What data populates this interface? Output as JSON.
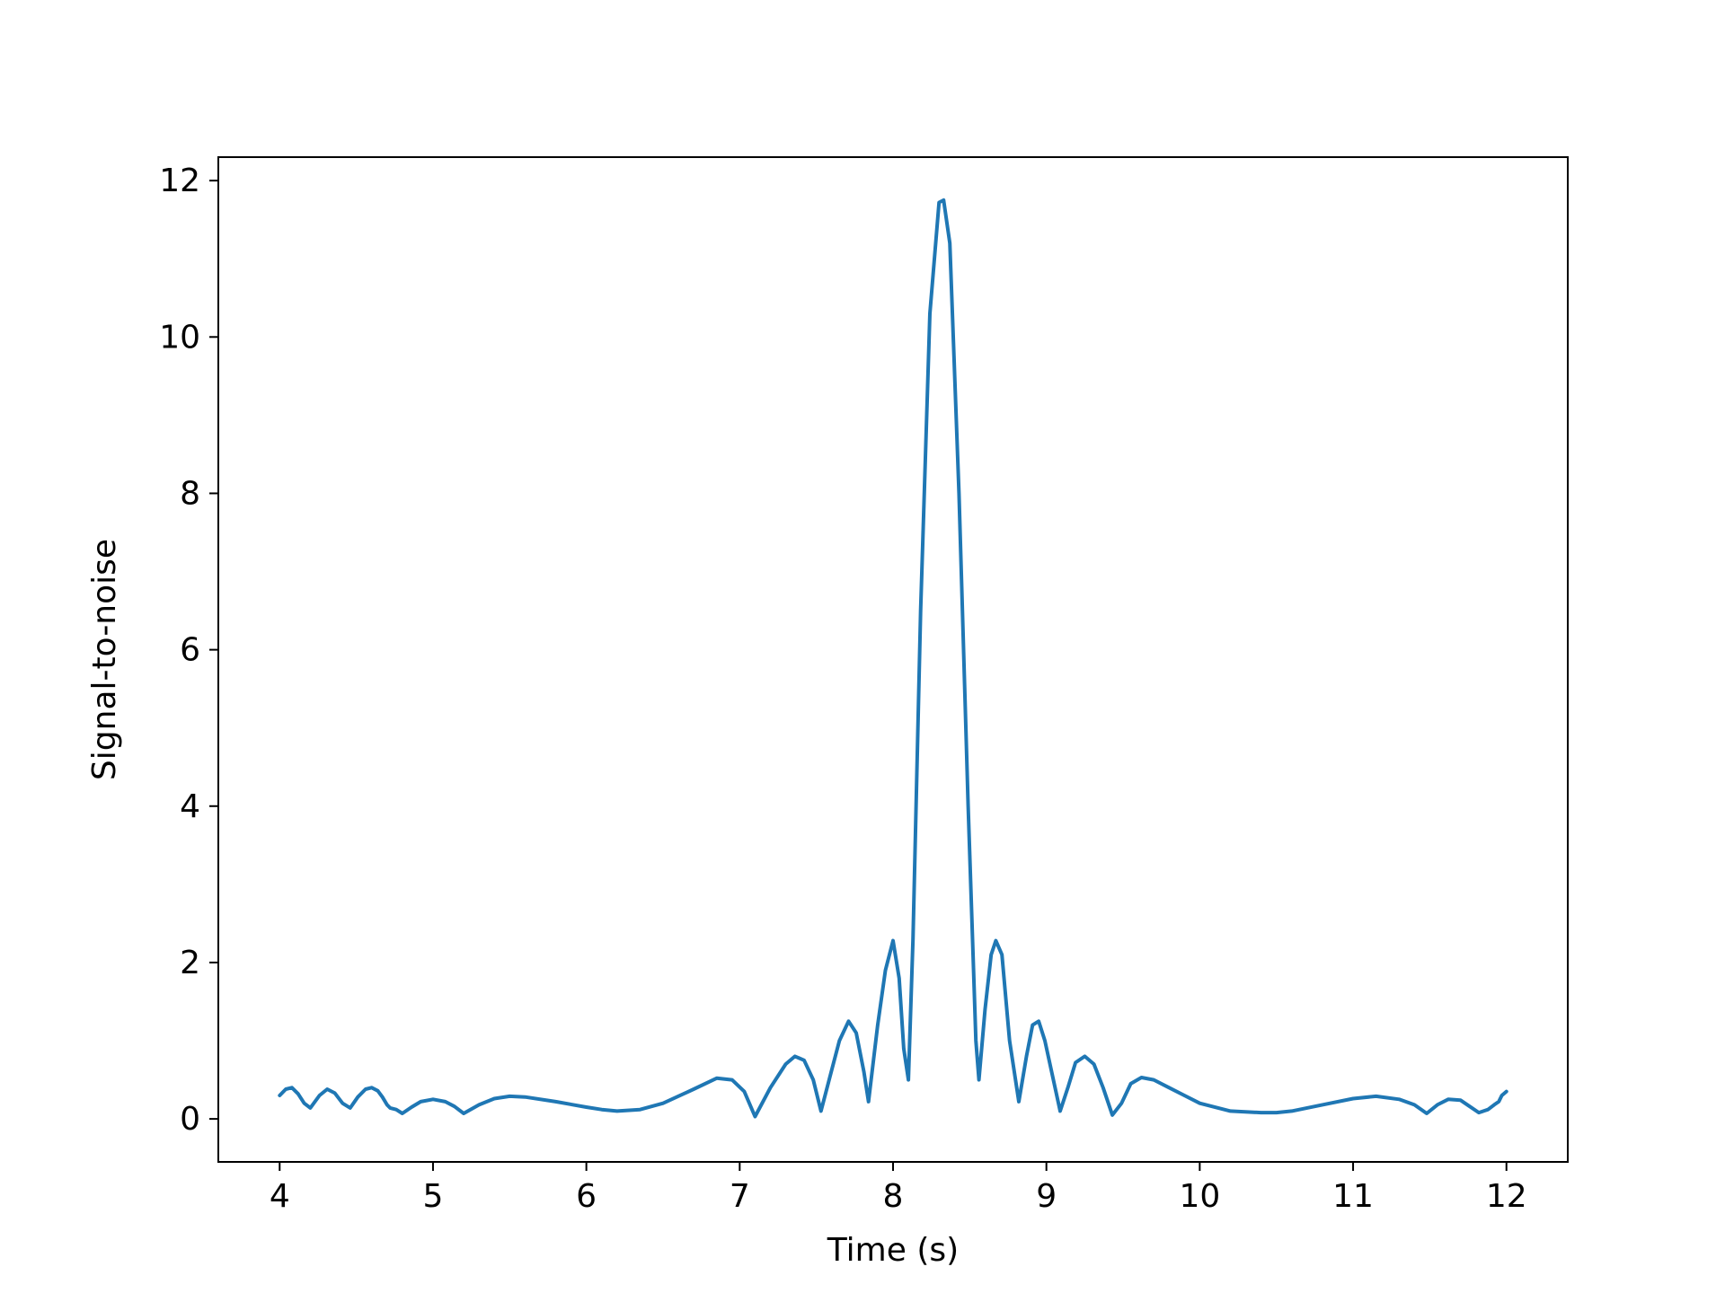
{
  "chart_data": {
    "type": "line",
    "title": "",
    "xlabel": "Time (s)",
    "ylabel": "Signal-to-noise",
    "xlim": [
      3.6,
      12.4
    ],
    "ylim": [
      -0.55,
      12.3
    ],
    "xticks": [
      4,
      5,
      6,
      7,
      8,
      9,
      10,
      11,
      12
    ],
    "yticks": [
      0,
      2,
      4,
      6,
      8,
      10,
      12
    ],
    "grid": false,
    "legend": "none",
    "series": [
      {
        "color": "#1f77b4",
        "x": [
          4.0,
          4.04,
          4.08,
          4.12,
          4.16,
          4.2,
          4.26,
          4.31,
          4.36,
          4.41,
          4.46,
          4.51,
          4.56,
          4.6,
          4.64,
          4.67,
          4.7,
          4.72,
          4.76,
          4.8,
          4.86,
          4.92,
          5.0,
          5.08,
          5.14,
          5.2,
          5.3,
          5.4,
          5.5,
          5.6,
          5.8,
          6.0,
          6.1,
          6.2,
          6.35,
          6.5,
          6.7,
          6.85,
          6.95,
          7.03,
          7.1,
          7.2,
          7.3,
          7.36,
          7.42,
          7.48,
          7.53,
          7.59,
          7.65,
          7.71,
          7.76,
          7.81,
          7.84,
          7.9,
          7.95,
          8.0,
          8.04,
          8.07,
          8.1,
          8.13,
          8.18,
          8.24,
          8.3,
          8.33,
          8.37,
          8.43,
          8.49,
          8.54,
          8.56,
          8.6,
          8.64,
          8.67,
          8.71,
          8.76,
          8.82,
          8.87,
          8.91,
          8.95,
          8.99,
          9.04,
          9.09,
          9.14,
          9.19,
          9.25,
          9.31,
          9.37,
          9.43,
          9.49,
          9.55,
          9.62,
          9.7,
          9.8,
          9.9,
          10.0,
          10.2,
          10.4,
          10.5,
          10.6,
          10.8,
          11.0,
          11.15,
          11.3,
          11.4,
          11.48,
          11.55,
          11.62,
          11.7,
          11.76,
          11.82,
          11.88,
          11.92,
          11.95,
          11.97,
          12.0
        ],
        "values": [
          0.3,
          0.38,
          0.4,
          0.32,
          0.2,
          0.14,
          0.3,
          0.38,
          0.33,
          0.2,
          0.14,
          0.28,
          0.38,
          0.4,
          0.36,
          0.28,
          0.18,
          0.14,
          0.12,
          0.07,
          0.15,
          0.22,
          0.25,
          0.22,
          0.16,
          0.07,
          0.18,
          0.26,
          0.29,
          0.28,
          0.22,
          0.15,
          0.12,
          0.1,
          0.12,
          0.2,
          0.38,
          0.52,
          0.5,
          0.35,
          0.03,
          0.4,
          0.7,
          0.8,
          0.75,
          0.5,
          0.1,
          0.55,
          1.0,
          1.25,
          1.1,
          0.6,
          0.22,
          1.2,
          1.9,
          2.28,
          1.8,
          0.9,
          0.5,
          2.3,
          6.5,
          10.3,
          11.72,
          11.75,
          11.2,
          8.0,
          4.0,
          1.0,
          0.5,
          1.4,
          2.1,
          2.28,
          2.1,
          1.0,
          0.22,
          0.8,
          1.2,
          1.25,
          1.0,
          0.55,
          0.1,
          0.4,
          0.72,
          0.8,
          0.7,
          0.4,
          0.05,
          0.2,
          0.45,
          0.53,
          0.5,
          0.4,
          0.3,
          0.2,
          0.1,
          0.08,
          0.08,
          0.1,
          0.18,
          0.26,
          0.29,
          0.25,
          0.18,
          0.07,
          0.18,
          0.25,
          0.24,
          0.16,
          0.08,
          0.12,
          0.18,
          0.22,
          0.3,
          0.35
        ]
      }
    ]
  }
}
